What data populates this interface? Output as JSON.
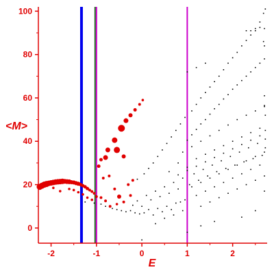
{
  "chart_data": {
    "type": "scatter",
    "title": "",
    "xlabel": "E",
    "ylabel": "<M>",
    "xlim": [
      -2.28,
      2.76
    ],
    "ylim": [
      -7,
      102
    ],
    "xticks": [
      -2,
      -1,
      0,
      1,
      2
    ],
    "yticks": [
      0,
      20,
      40,
      60,
      80,
      100
    ],
    "xtick_labels": [
      "-2",
      "-1",
      "0",
      "1",
      "2"
    ],
    "ytick_labels": [
      "0",
      "20",
      "40",
      "60",
      "80",
      "100"
    ],
    "grid": false,
    "legend": "none",
    "colors": {
      "axis": "#e00000",
      "large_points": "#e00000",
      "small_points": "#000000",
      "line_blue": "#0000ee",
      "line_green": "#1a6e1a",
      "line_magenta": "#cc00cc"
    },
    "vertical_lines": [
      {
        "x": -1.33,
        "color": "#0000ee"
      },
      {
        "x": -1.03,
        "color": "#1a6e1a"
      },
      {
        "x": -1.0,
        "color": "#cc00cc"
      },
      {
        "x": 1.0,
        "color": "#cc00cc"
      }
    ],
    "series": [
      {
        "marker": "large",
        "color": "#e00000",
        "points": [
          [
            -2.25,
            19.0,
            4.5
          ],
          [
            -2.2,
            19.5,
            4.5
          ],
          [
            -2.15,
            20.0,
            4.5
          ],
          [
            -2.1,
            20.3,
            4.5
          ],
          [
            -2.05,
            20.6,
            4.0
          ],
          [
            -2.0,
            20.8,
            4.0
          ],
          [
            -1.95,
            21.0,
            4.0
          ],
          [
            -1.9,
            21.2,
            4.0
          ],
          [
            -1.85,
            21.3,
            4.0
          ],
          [
            -1.8,
            21.4,
            4.0
          ],
          [
            -1.75,
            21.5,
            4.0
          ],
          [
            -1.7,
            21.5,
            3.5
          ],
          [
            -1.65,
            21.4,
            3.5
          ],
          [
            -1.6,
            21.3,
            3.5
          ],
          [
            -1.55,
            21.1,
            3.0
          ],
          [
            -1.5,
            21.0,
            3.0
          ],
          [
            -1.45,
            20.7,
            3.0
          ],
          [
            -1.4,
            20.4,
            3.0
          ],
          [
            -1.35,
            20.0,
            2.5
          ],
          [
            -1.3,
            19.5,
            2.5
          ],
          [
            -1.25,
            19.0,
            2.5
          ],
          [
            -1.2,
            18.2,
            2.5
          ],
          [
            -1.15,
            17.5,
            2.0
          ],
          [
            -1.1,
            16.8,
            2.0
          ],
          [
            -1.05,
            16.0,
            2.0
          ],
          [
            -0.8,
            32.5,
            3.5
          ],
          [
            -0.75,
            36.0,
            3.5
          ],
          [
            -0.6,
            40.5,
            4.0
          ],
          [
            -0.45,
            46.0,
            5.0
          ],
          [
            -0.35,
            49.5,
            3.5
          ],
          [
            -0.25,
            52.0,
            3.0
          ],
          [
            -0.15,
            54.5,
            2.5
          ],
          [
            -0.05,
            57.0,
            2.0
          ],
          [
            0.02,
            59.0,
            1.8
          ],
          [
            -0.55,
            36.0,
            4.5
          ],
          [
            -0.4,
            33.0,
            3.0
          ],
          [
            -0.95,
            28.5,
            2.5
          ],
          [
            -0.9,
            31.5,
            2.5
          ],
          [
            -0.85,
            23.0,
            2.0
          ],
          [
            -0.72,
            24.0,
            2.0
          ],
          [
            -0.5,
            14.5,
            3.0
          ],
          [
            -0.4,
            12.0,
            2.0
          ],
          [
            -0.6,
            18.0,
            2.0
          ],
          [
            -0.3,
            20.0,
            2.0
          ],
          [
            -0.2,
            22.0,
            2.0
          ],
          [
            -0.25,
            15.0,
            2.0
          ],
          [
            -1.0,
            14.5,
            2.0
          ],
          [
            -0.9,
            14.0,
            2.0
          ],
          [
            -0.8,
            12.5,
            2.0
          ],
          [
            -0.7,
            10.0,
            2.0
          ],
          [
            -0.55,
            11.0,
            1.8
          ],
          [
            -1.95,
            18.5,
            1.8
          ],
          [
            -1.8,
            17.0,
            1.8
          ],
          [
            -1.6,
            18.0,
            1.8
          ],
          [
            -1.5,
            17.5,
            1.8
          ],
          [
            -1.4,
            16.5,
            1.8
          ],
          [
            -1.3,
            15.5,
            1.8
          ],
          [
            -1.2,
            14.0,
            1.8
          ],
          [
            -1.1,
            13.0,
            1.8
          ]
        ]
      },
      {
        "marker": "small",
        "color": "#000000",
        "points": [
          [
            -1.25,
            12.0
          ],
          [
            -1.05,
            11.5
          ],
          [
            -0.9,
            11.0
          ],
          [
            -0.8,
            10.0
          ],
          [
            -0.65,
            9.0
          ],
          [
            -0.55,
            8.5
          ],
          [
            -0.45,
            8.0
          ],
          [
            -0.35,
            7.5
          ],
          [
            -0.25,
            8.0
          ],
          [
            -0.15,
            7.0
          ],
          [
            -0.05,
            6.5
          ],
          [
            0.05,
            7.0
          ],
          [
            0.15,
            8.5
          ],
          [
            0.25,
            6.0
          ],
          [
            0.35,
            9.0
          ],
          [
            0.45,
            7.5
          ],
          [
            0.55,
            10.0
          ],
          [
            0.65,
            8.5
          ],
          [
            0.75,
            11.5
          ],
          [
            0.85,
            12.0
          ],
          [
            0.95,
            13.0
          ],
          [
            -0.2,
            10.5
          ],
          [
            -0.1,
            12.5
          ],
          [
            0.0,
            10.0
          ],
          [
            0.1,
            15.0
          ],
          [
            0.2,
            13.0
          ],
          [
            0.3,
            17.0
          ],
          [
            0.4,
            14.5
          ],
          [
            0.5,
            19.0
          ],
          [
            0.6,
            16.0
          ],
          [
            0.7,
            21.0
          ],
          [
            0.8,
            18.0
          ],
          [
            0.9,
            23.0
          ],
          [
            1.05,
            20.0
          ],
          [
            1.15,
            25.0
          ],
          [
            1.25,
            22.0
          ],
          [
            1.35,
            27.0
          ],
          [
            1.45,
            24.0
          ],
          [
            1.55,
            29.0
          ],
          [
            1.65,
            26.0
          ],
          [
            1.75,
            31.0
          ],
          [
            1.85,
            27.5
          ],
          [
            1.95,
            33.0
          ],
          [
            2.05,
            29.0
          ],
          [
            2.15,
            35.0
          ],
          [
            2.25,
            30.5
          ],
          [
            2.35,
            37.0
          ],
          [
            2.45,
            32.0
          ],
          [
            2.55,
            39.0
          ],
          [
            2.65,
            33.5
          ],
          [
            2.72,
            41.0
          ],
          [
            -0.1,
            22.5
          ],
          [
            0.05,
            25.0
          ],
          [
            0.15,
            27.5
          ],
          [
            0.25,
            30.0
          ],
          [
            0.35,
            33.0
          ],
          [
            0.45,
            36.0
          ],
          [
            0.55,
            39.0
          ],
          [
            0.65,
            42.0
          ],
          [
            0.75,
            45.0
          ],
          [
            0.85,
            48.0
          ],
          [
            0.95,
            51.0
          ],
          [
            1.1,
            54.0
          ],
          [
            1.2,
            57.0
          ],
          [
            1.3,
            60.0
          ],
          [
            1.4,
            62.5
          ],
          [
            1.5,
            65.0
          ],
          [
            1.6,
            67.5
          ],
          [
            1.7,
            70.0
          ],
          [
            1.8,
            73.0
          ],
          [
            1.9,
            76.0
          ],
          [
            2.0,
            78.5
          ],
          [
            2.1,
            81.0
          ],
          [
            2.2,
            84.0
          ],
          [
            2.3,
            86.5
          ],
          [
            2.4,
            89.0
          ],
          [
            2.5,
            92.0
          ],
          [
            2.6,
            95.0
          ],
          [
            2.68,
            99.0
          ],
          [
            2.72,
            101.0
          ],
          [
            1.0,
            40.5
          ],
          [
            1.1,
            43.0
          ],
          [
            1.2,
            45.5
          ],
          [
            1.3,
            48.0
          ],
          [
            1.4,
            50.0
          ],
          [
            1.5,
            52.5
          ],
          [
            1.6,
            55.0
          ],
          [
            1.7,
            57.0
          ],
          [
            1.8,
            59.5
          ],
          [
            1.9,
            61.5
          ],
          [
            2.0,
            64.0
          ],
          [
            2.1,
            66.0
          ],
          [
            2.2,
            68.0
          ],
          [
            2.3,
            70.0
          ],
          [
            2.4,
            72.0
          ],
          [
            2.5,
            74.0
          ],
          [
            2.6,
            76.0
          ],
          [
            2.7,
            78.0
          ],
          [
            0.9,
            35.0
          ],
          [
            1.1,
            37.5
          ],
          [
            1.3,
            40.0
          ],
          [
            1.5,
            42.5
          ],
          [
            1.7,
            45.0
          ],
          [
            1.9,
            47.5
          ],
          [
            2.1,
            50.0
          ],
          [
            2.3,
            52.0
          ],
          [
            2.5,
            54.0
          ],
          [
            2.7,
            56.0
          ],
          [
            0.8,
            30.0
          ],
          [
            1.0,
            28.0
          ],
          [
            1.2,
            32.0
          ],
          [
            1.4,
            34.0
          ],
          [
            1.6,
            36.0
          ],
          [
            1.8,
            38.0
          ],
          [
            2.0,
            40.0
          ],
          [
            2.2,
            42.0
          ],
          [
            2.4,
            44.0
          ],
          [
            2.6,
            46.0
          ],
          [
            0.6,
            26.0
          ],
          [
            0.8,
            24.5
          ],
          [
            1.0,
            26.5
          ],
          [
            1.2,
            28.5
          ],
          [
            1.4,
            30.5
          ],
          [
            1.6,
            32.5
          ],
          [
            1.8,
            34.5
          ],
          [
            2.0,
            36.5
          ],
          [
            2.2,
            38.5
          ],
          [
            2.4,
            40.5
          ],
          [
            2.6,
            42.5
          ],
          [
            1.1,
            19.0
          ],
          [
            1.3,
            21.0
          ],
          [
            1.5,
            23.0
          ],
          [
            1.7,
            25.0
          ],
          [
            1.9,
            27.0
          ],
          [
            2.1,
            29.0
          ],
          [
            2.3,
            31.0
          ],
          [
            2.5,
            33.0
          ],
          [
            2.7,
            35.0
          ],
          [
            1.2,
            15.0
          ],
          [
            1.4,
            17.0
          ],
          [
            1.6,
            19.0
          ],
          [
            1.8,
            21.0
          ],
          [
            2.0,
            23.0
          ],
          [
            2.2,
            25.0
          ],
          [
            2.4,
            27.0
          ],
          [
            2.6,
            29.0
          ],
          [
            1.3,
            10.0
          ],
          [
            1.5,
            12.0
          ],
          [
            1.7,
            14.0
          ],
          [
            1.9,
            16.0
          ],
          [
            2.1,
            18.0
          ],
          [
            2.3,
            20.0
          ],
          [
            2.5,
            22.0
          ],
          [
            2.7,
            24.0
          ],
          [
            0.3,
            2.0
          ],
          [
            0.5,
            4.5
          ],
          [
            0.7,
            6.0
          ],
          [
            0.9,
            8.0
          ],
          [
            1.0,
            -2.0
          ],
          [
            0.0,
            -5.5
          ],
          [
            1.3,
            1.0
          ],
          [
            1.6,
            3.0
          ],
          [
            2.2,
            5.0
          ],
          [
            2.5,
            8.0
          ],
          [
            2.7,
            17.0
          ],
          [
            2.7,
            92.0
          ],
          [
            2.68,
            86.0
          ],
          [
            2.7,
            84.0
          ],
          [
            2.3,
            91.0
          ],
          [
            2.4,
            91.0
          ],
          [
            2.5,
            91.0
          ],
          [
            2.6,
            92.5
          ],
          [
            1.0,
            72.0
          ],
          [
            1.2,
            74.0
          ],
          [
            1.4,
            76.0
          ],
          [
            2.7,
            61.0
          ],
          [
            2.7,
            56.5
          ],
          [
            2.72,
            52.0
          ],
          [
            2.72,
            45.0
          ],
          [
            2.72,
            37.0
          ]
        ]
      }
    ]
  }
}
